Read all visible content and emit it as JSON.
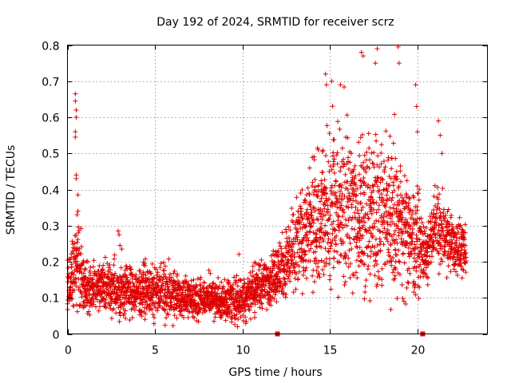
{
  "chart_data": {
    "type": "scatter",
    "title": "Day 192 of 2024, SRMTID for receiver scrz",
    "xlabel": "GPS time / hours",
    "ylabel": "SRMTID / TECUs",
    "xlim": [
      0,
      24
    ],
    "ylim": [
      0,
      0.8
    ],
    "x_ticks": [
      0,
      5,
      10,
      15,
      20
    ],
    "x_tick_labels": [
      "0",
      "5",
      "10",
      "15",
      "20"
    ],
    "y_ticks": [
      0,
      0.1,
      0.2,
      0.3,
      0.4,
      0.5,
      0.6,
      0.7,
      0.8
    ],
    "y_tick_labels": [
      "0",
      "0.1",
      "0.2",
      "0.3",
      "0.4",
      "0.5",
      "0.6",
      "0.7",
      "0.8"
    ],
    "grid": true,
    "marker": "plus",
    "color": "#e00000",
    "series": [
      {
        "name": "SRMTID",
        "envelope_hours": [
          0,
          0.5,
          1,
          2,
          3,
          4,
          5,
          6,
          7,
          8,
          9,
          10,
          11,
          12,
          13,
          14,
          15,
          16,
          17,
          18,
          19,
          20,
          20.5,
          21,
          22,
          22.8
        ],
        "envelope_typical": [
          0.12,
          0.2,
          0.13,
          0.13,
          0.12,
          0.12,
          0.12,
          0.11,
          0.1,
          0.1,
          0.09,
          0.1,
          0.13,
          0.17,
          0.23,
          0.3,
          0.33,
          0.35,
          0.33,
          0.34,
          0.3,
          0.25,
          0.22,
          0.3,
          0.25,
          0.23
        ],
        "envelope_spread": [
          0.05,
          0.08,
          0.05,
          0.05,
          0.05,
          0.05,
          0.05,
          0.05,
          0.04,
          0.04,
          0.04,
          0.05,
          0.05,
          0.06,
          0.08,
          0.12,
          0.15,
          0.16,
          0.16,
          0.16,
          0.14,
          0.1,
          0.05,
          0.07,
          0.06,
          0.06
        ],
        "spikes": [
          {
            "x": 0.45,
            "y": 0.665
          },
          {
            "x": 0.45,
            "y": 0.645
          },
          {
            "x": 0.5,
            "y": 0.62
          },
          {
            "x": 0.5,
            "y": 0.6
          },
          {
            "x": 0.45,
            "y": 0.56
          },
          {
            "x": 0.45,
            "y": 0.545
          },
          {
            "x": 0.5,
            "y": 0.44
          },
          {
            "x": 0.5,
            "y": 0.43
          },
          {
            "x": 0.6,
            "y": 0.385
          },
          {
            "x": 0.6,
            "y": 0.34
          },
          {
            "x": 0.55,
            "y": 0.33
          },
          {
            "x": 2.9,
            "y": 0.285
          },
          {
            "x": 2.95,
            "y": 0.275
          },
          {
            "x": 3.0,
            "y": 0.245
          },
          {
            "x": 3.1,
            "y": 0.235
          },
          {
            "x": 14.75,
            "y": 0.72
          },
          {
            "x": 14.8,
            "y": 0.69
          },
          {
            "x": 15.1,
            "y": 0.7
          },
          {
            "x": 15.6,
            "y": 0.69
          },
          {
            "x": 16.8,
            "y": 0.78
          },
          {
            "x": 16.9,
            "y": 0.77
          },
          {
            "x": 17.7,
            "y": 0.79
          },
          {
            "x": 17.6,
            "y": 0.75
          },
          {
            "x": 18.9,
            "y": 0.795
          },
          {
            "x": 18.95,
            "y": 0.75
          },
          {
            "x": 19.9,
            "y": 0.69
          },
          {
            "x": 19.95,
            "y": 0.63
          },
          {
            "x": 20.0,
            "y": 0.56
          },
          {
            "x": 21.2,
            "y": 0.59
          },
          {
            "x": 21.3,
            "y": 0.55
          },
          {
            "x": 21.4,
            "y": 0.5
          }
        ],
        "gap_markers_hours": [
          12.0,
          20.3
        ]
      }
    ]
  }
}
